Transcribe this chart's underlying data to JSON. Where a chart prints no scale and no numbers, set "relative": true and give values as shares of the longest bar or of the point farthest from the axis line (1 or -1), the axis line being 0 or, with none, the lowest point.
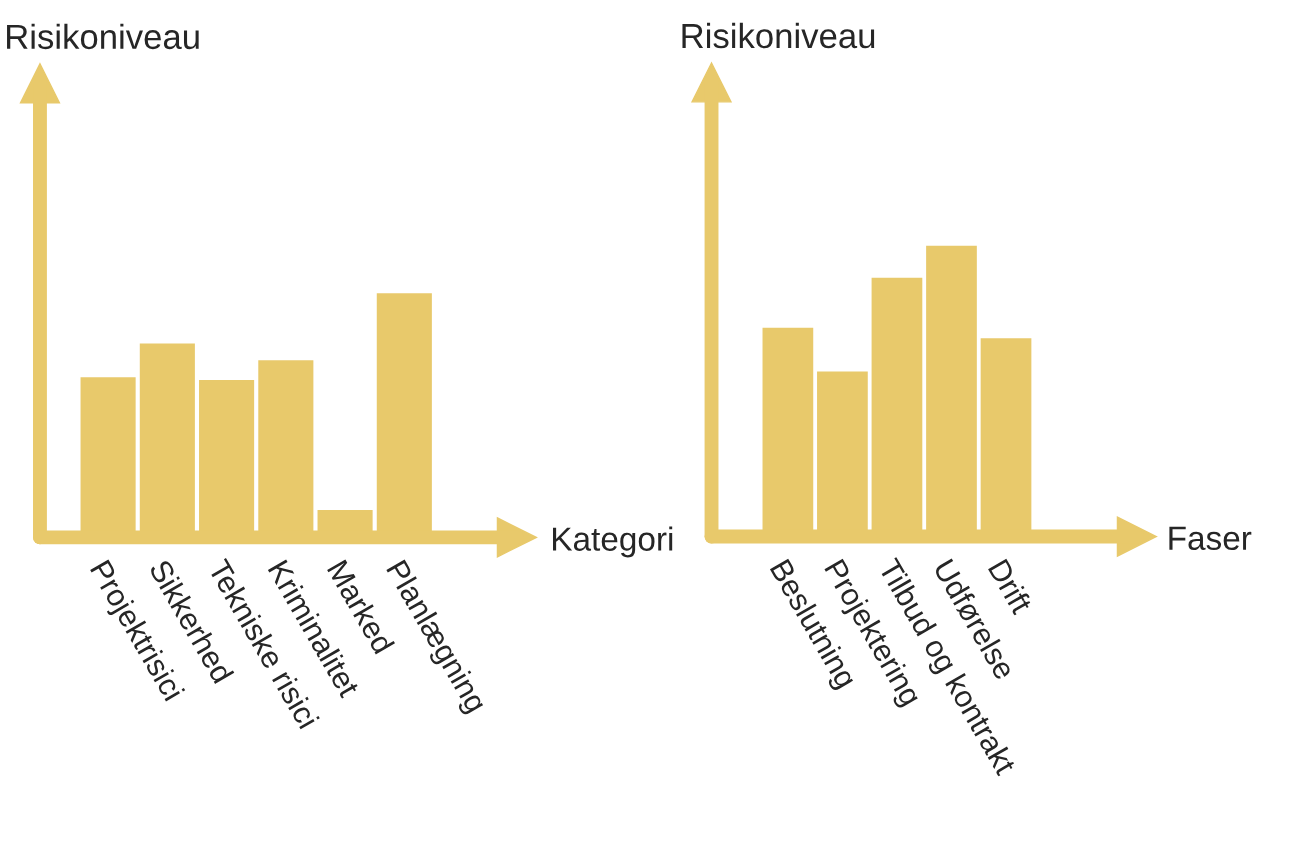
{
  "chart_data": [
    {
      "type": "bar",
      "relative": true,
      "xlabel": "Kategori",
      "ylabel": "Risikoniveau",
      "color": "#e8c96b",
      "categories": [
        "Projektrisici",
        "Sikkerhed",
        "Tekniske risici",
        "Kriminalitet",
        "Marked",
        "Planlægning"
      ],
      "values": [
        0.656,
        0.795,
        0.645,
        0.726,
        0.112,
        1
      ]
    },
    {
      "type": "bar",
      "relative": true,
      "xlabel": "Faser",
      "ylabel": "Risikoniveau",
      "color": "#e8c96b",
      "categories": [
        "Beslutning",
        "Projektering",
        "Tilbud og kontrakt",
        "Udførelse",
        "Drift"
      ],
      "values": [
        0.718,
        0.568,
        0.89,
        1,
        0.682
      ]
    }
  ]
}
